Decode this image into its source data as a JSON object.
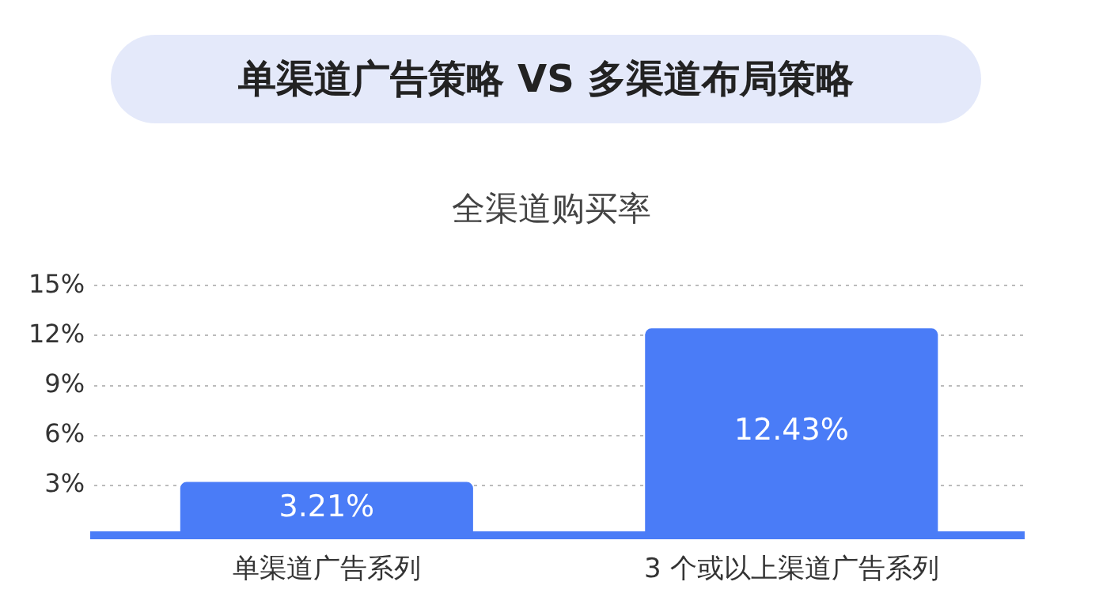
{
  "chart_data": {
    "type": "bar",
    "title": "单渠道广告策略 VS 多渠道布局策略",
    "subtitle": "全渠道购买率",
    "categories": [
      "单渠道广告系列",
      "3 个或以上渠道广告系列"
    ],
    "values": [
      3.21,
      12.43
    ],
    "color": "#4a7cf7",
    "value_labels": [
      "3.21%",
      "12.43%"
    ],
    "ylim": [
      0,
      15
    ],
    "yticks": [
      {
        "value": 0,
        "label": null
      },
      {
        "value": 3,
        "label": "3%"
      },
      {
        "value": 6,
        "label": "6%"
      },
      {
        "value": 9,
        "label": "9%"
      },
      {
        "value": 12,
        "label": "12%"
      },
      {
        "value": 15,
        "label": "15%"
      }
    ],
    "grid": "y",
    "legend": false
  }
}
